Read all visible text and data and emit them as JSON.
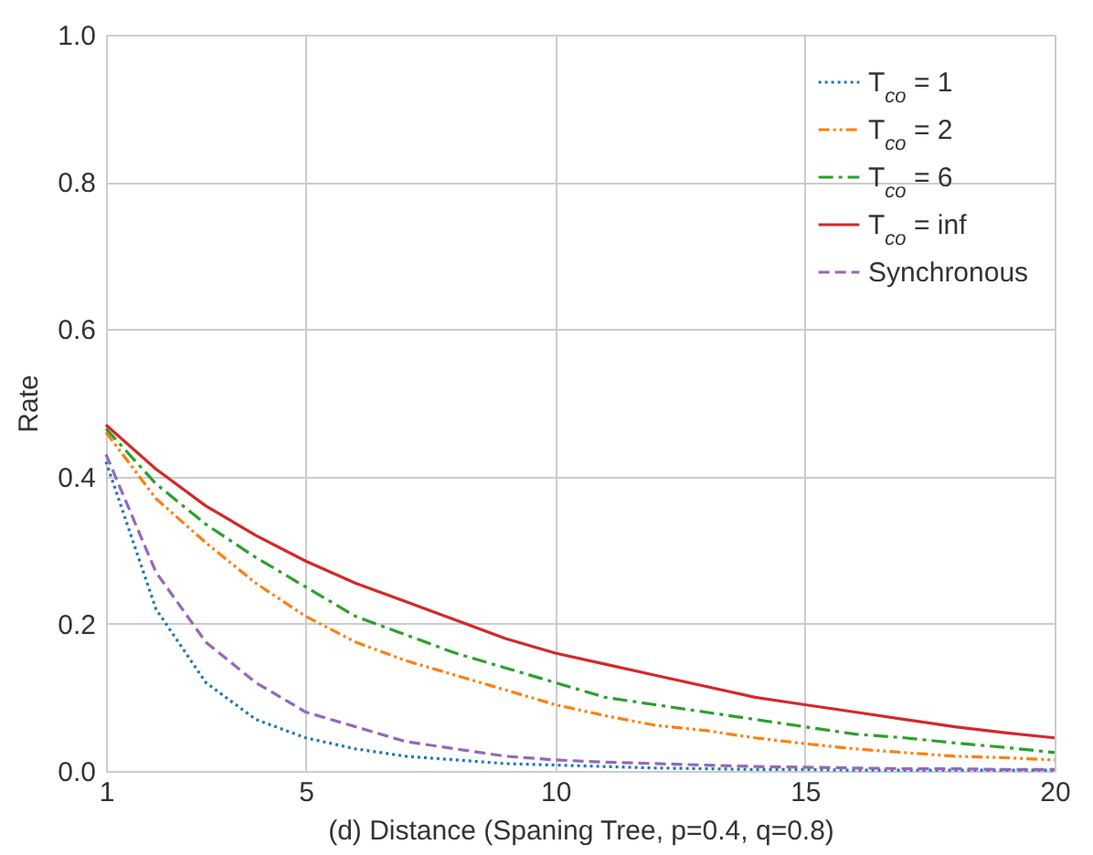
{
  "chart_data": {
    "type": "line",
    "xlabel": "(d) Distance (Spaning Tree, p=0.4, q=0.8)",
    "ylabel": "Rate",
    "x": [
      1,
      2,
      3,
      4,
      5,
      6,
      7,
      8,
      9,
      10,
      11,
      12,
      13,
      14,
      15,
      16,
      17,
      18,
      19,
      20
    ],
    "xlim": [
      1,
      20
    ],
    "xticks": [
      1,
      5,
      10,
      15,
      20
    ],
    "ylim": [
      0,
      1
    ],
    "yticks": [
      {
        "value": 0,
        "label": "0.0"
      },
      0.2,
      0.4,
      0.6,
      0.8,
      {
        "value": 1,
        "label": "1.0"
      }
    ],
    "grid": true,
    "legend": "top right",
    "marker": "none",
    "series": [
      {
        "name": "T$_{co}$ = 1",
        "color": "#1f77b4",
        "line_style": "dotted",
        "values": [
          0.42,
          0.22,
          0.12,
          0.07,
          0.045,
          0.03,
          0.02,
          0.015,
          0.01,
          0.008,
          0.006,
          0.004,
          0.003,
          0.002,
          0.002,
          0.001,
          0.001,
          0.001,
          0.001,
          0.001
        ]
      },
      {
        "name": "T$_{co}$ = 2",
        "color": "#ff7f0e",
        "line_style": "dashdotdot",
        "values": [
          0.46,
          0.37,
          0.31,
          0.255,
          0.21,
          0.175,
          0.15,
          0.13,
          0.11,
          0.09,
          0.075,
          0.062,
          0.055,
          0.045,
          0.037,
          0.03,
          0.025,
          0.02,
          0.018,
          0.015
        ]
      },
      {
        "name": "T$_{co}$ = 6",
        "color": "#2ca02c",
        "line_style": "dashdot",
        "values": [
          0.465,
          0.39,
          0.335,
          0.29,
          0.25,
          0.21,
          0.185,
          0.16,
          0.14,
          0.12,
          0.1,
          0.09,
          0.08,
          0.07,
          0.06,
          0.05,
          0.045,
          0.038,
          0.032,
          0.025
        ]
      },
      {
        "name": "T$_{co}$ = inf",
        "color": "#d62728",
        "line_style": "solid",
        "values": [
          0.47,
          0.41,
          0.36,
          0.32,
          0.285,
          0.255,
          0.23,
          0.205,
          0.18,
          0.16,
          0.145,
          0.13,
          0.115,
          0.1,
          0.09,
          0.08,
          0.07,
          0.06,
          0.052,
          0.045
        ]
      },
      {
        "name": "Synchronous",
        "color": "#9467bd",
        "line_style": "dashed",
        "values": [
          0.43,
          0.27,
          0.175,
          0.12,
          0.08,
          0.06,
          0.04,
          0.03,
          0.02,
          0.015,
          0.012,
          0.01,
          0.008,
          0.006,
          0.005,
          0.004,
          0.003,
          0.003,
          0.002,
          0.002
        ]
      }
    ]
  }
}
